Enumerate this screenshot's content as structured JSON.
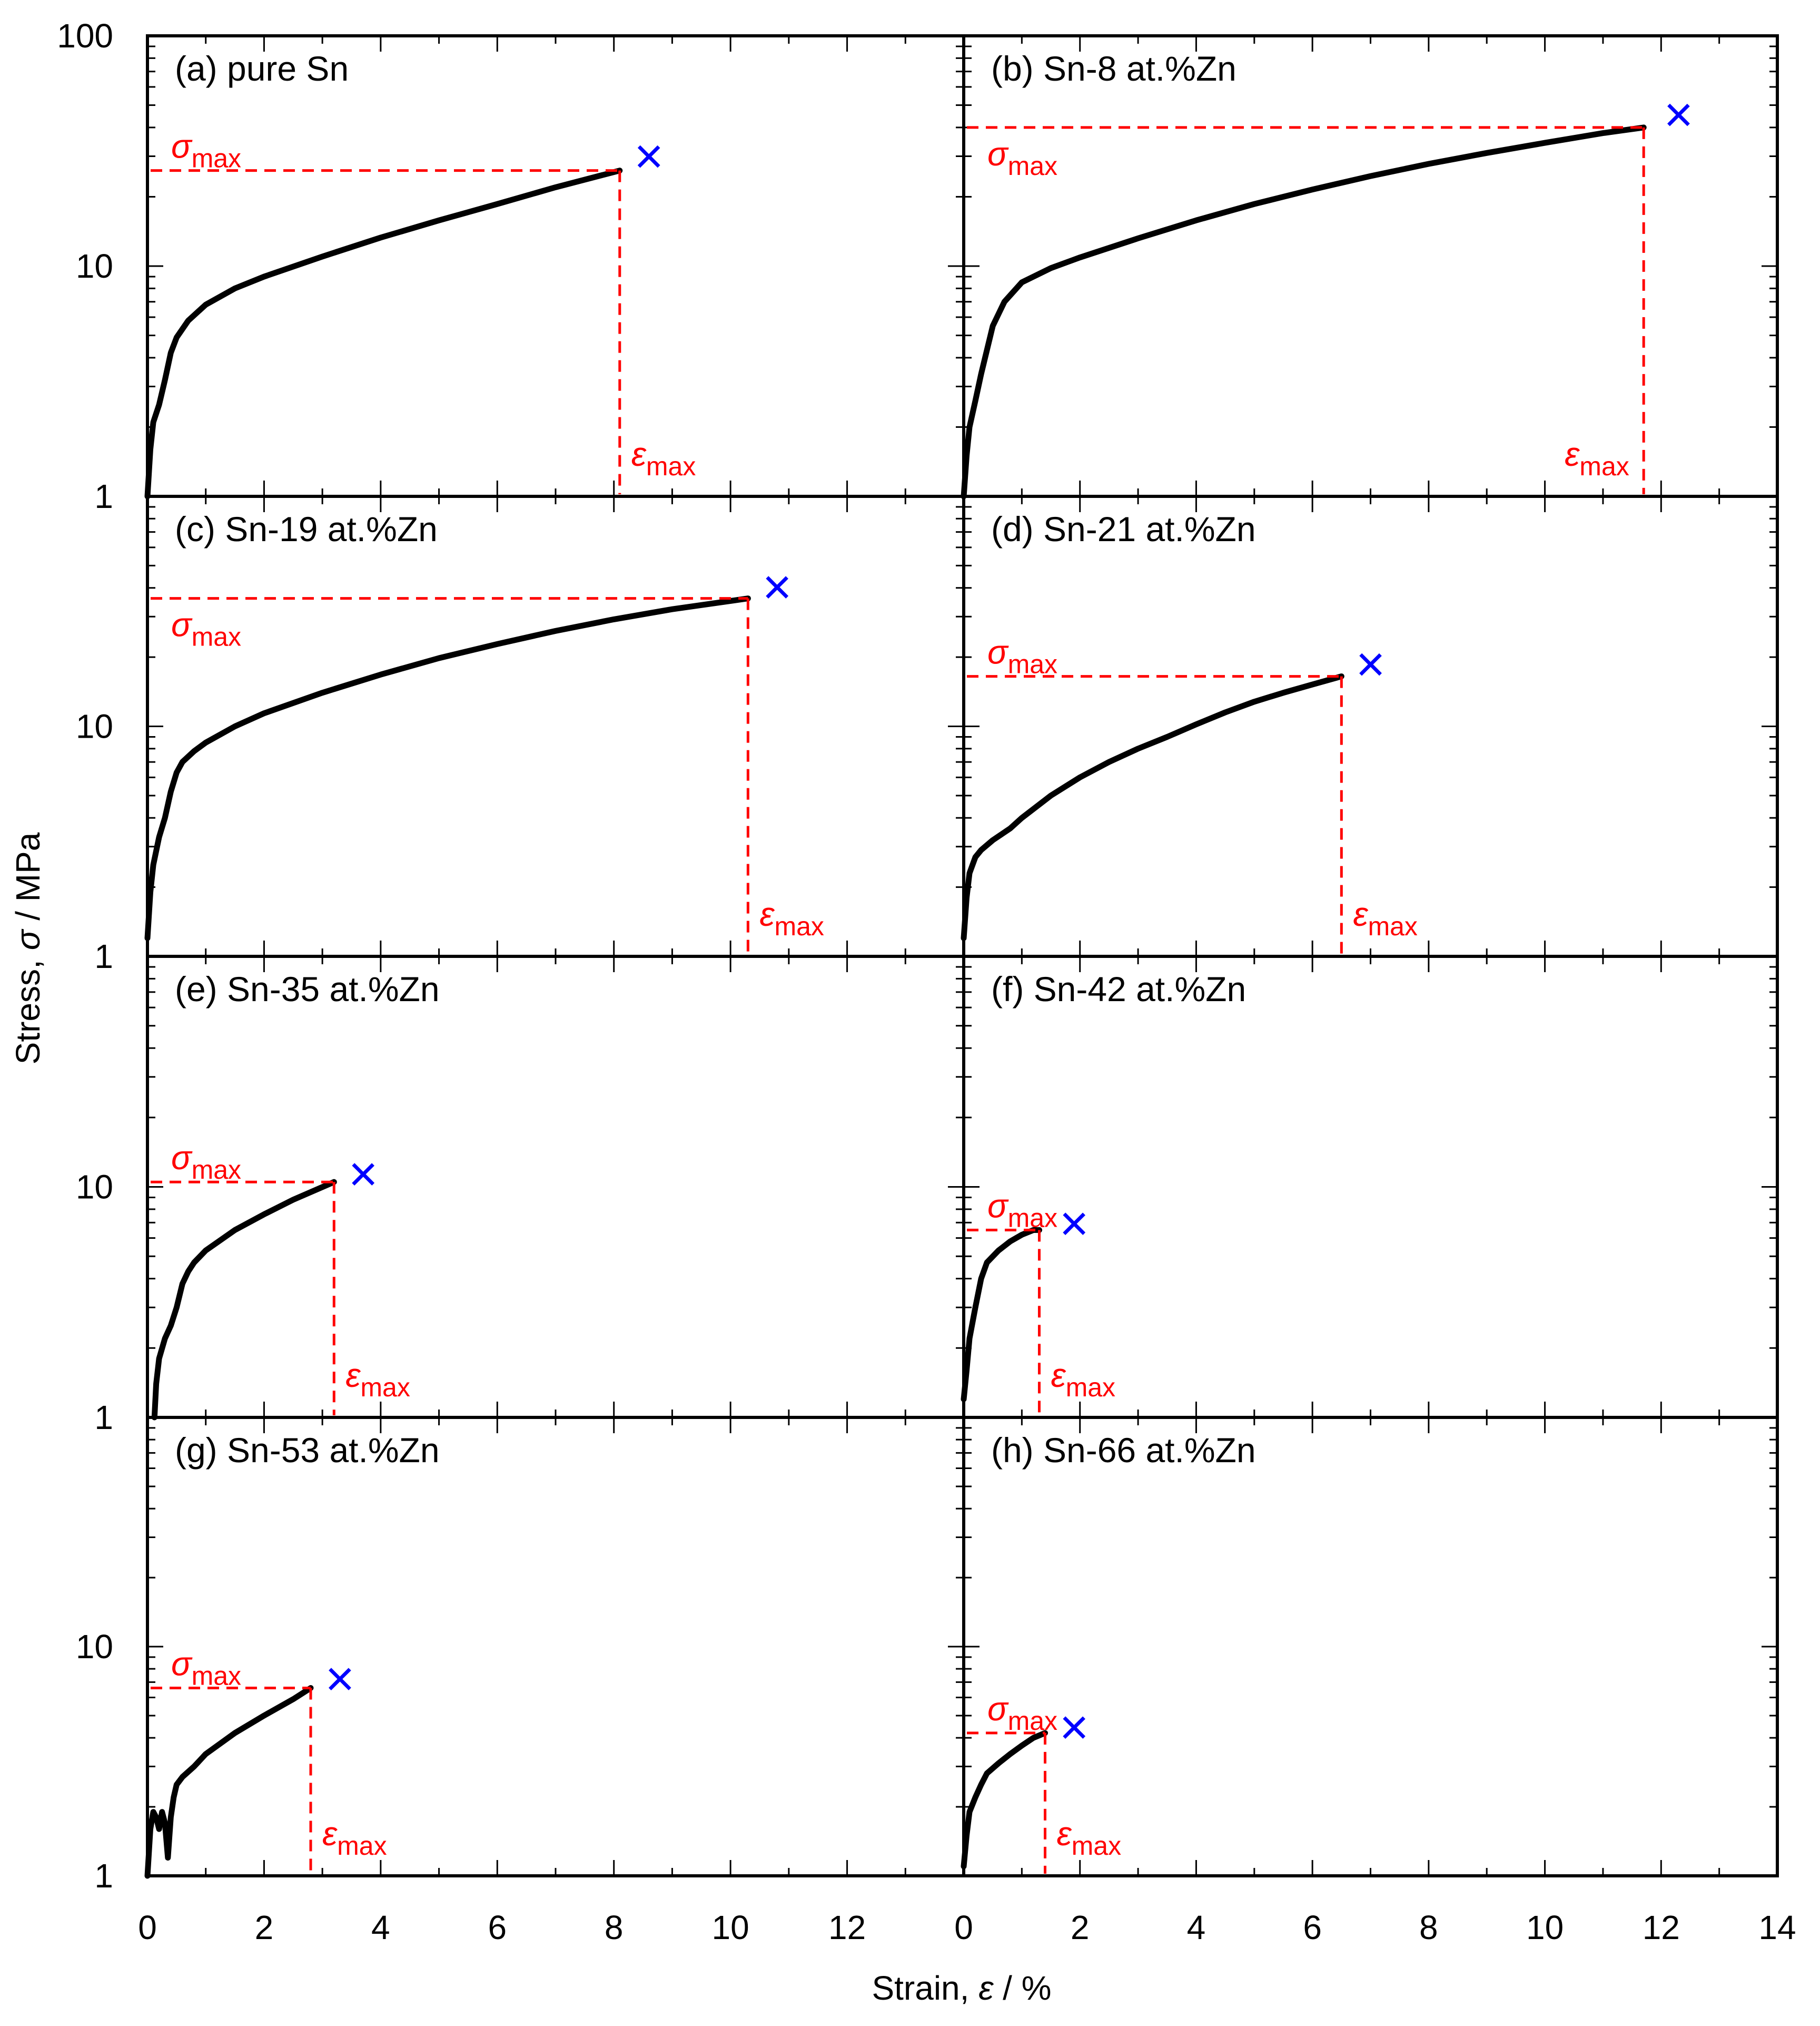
{
  "figure": {
    "ylabel_prefix": "Stress, ",
    "ylabel_symbol": "σ",
    "ylabel_suffix": " / MPa",
    "xlabel_prefix": "Strain, ",
    "xlabel_symbol": "ε",
    "xlabel_suffix": " / %",
    "sigma_symbol": "σ",
    "epsilon_symbol": "ε",
    "max_subscript": "max",
    "fracture_marker": "×"
  },
  "colors": {
    "curve": "#000000",
    "guide": "#ff0000",
    "marker": "#0000ff",
    "frame": "#000000"
  },
  "chart_data": [
    {
      "type": "line",
      "title": "(a) pure Sn",
      "xlabel": "Strain, ε / %",
      "ylabel": "Stress, σ / MPa",
      "yscale": "log",
      "xlim": [
        0,
        14
      ],
      "ylim": [
        1,
        100
      ],
      "y_tick_labels": [
        "100",
        "10",
        "1"
      ],
      "x_tick_labels": [],
      "series": [
        {
          "name": "pure Sn",
          "x": [
            0,
            0.05,
            0.1,
            0.2,
            0.3,
            0.4,
            0.5,
            0.7,
            1.0,
            1.5,
            2.0,
            3.0,
            4.0,
            5.0,
            6.0,
            7.0,
            8.1
          ],
          "y": [
            1,
            1.6,
            2.1,
            2.5,
            3.2,
            4.2,
            4.9,
            5.8,
            6.8,
            8.0,
            9.0,
            11.0,
            13.3,
            15.8,
            18.6,
            22.0,
            26
          ]
        }
      ],
      "sigma_max": 26,
      "epsilon_max": 8.1,
      "fracture_x": 8.6,
      "fracture_y": 29,
      "sigma_label_above": true
    },
    {
      "type": "line",
      "title": "(b) Sn-8 at.%Zn",
      "xlabel": "Strain, ε / %",
      "ylabel": "Stress, σ / MPa",
      "yscale": "log",
      "xlim": [
        0,
        14
      ],
      "ylim": [
        1,
        100
      ],
      "y_tick_labels": [],
      "x_tick_labels": [],
      "series": [
        {
          "name": "Sn-8 at.%Zn",
          "x": [
            0,
            0.05,
            0.1,
            0.2,
            0.3,
            0.5,
            0.7,
            1.0,
            1.5,
            2.0,
            3.0,
            4.0,
            5.0,
            6.0,
            7.0,
            8.0,
            9.0,
            10.0,
            11.0,
            11.7
          ],
          "y": [
            1,
            1.5,
            2.0,
            2.6,
            3.4,
            5.5,
            7.0,
            8.5,
            9.8,
            10.9,
            13.2,
            15.8,
            18.6,
            21.5,
            24.6,
            27.8,
            31.0,
            34.3,
            37.8,
            40
          ]
        }
      ],
      "sigma_max": 40,
      "epsilon_max": 11.7,
      "fracture_x": 12.3,
      "fracture_y": 44,
      "sigma_label_above": false
    },
    {
      "type": "line",
      "title": "(c) Sn-19 at.%Zn",
      "xlabel": "Strain, ε / %",
      "ylabel": "Stress, σ / MPa",
      "yscale": "log",
      "xlim": [
        0,
        14
      ],
      "ylim": [
        1,
        100
      ],
      "y_tick_labels": [
        "10",
        "1"
      ],
      "x_tick_labels": [],
      "series": [
        {
          "name": "Sn-19 at.%Zn",
          "x": [
            0,
            0.05,
            0.1,
            0.2,
            0.3,
            0.4,
            0.5,
            0.6,
            0.8,
            1.0,
            1.5,
            2.0,
            3.0,
            4.0,
            5.0,
            6.0,
            7.0,
            8.0,
            9.0,
            10.3
          ],
          "y": [
            1.2,
            1.9,
            2.5,
            3.3,
            4.0,
            5.2,
            6.3,
            7.0,
            7.8,
            8.5,
            10.0,
            11.4,
            14.0,
            16.8,
            19.8,
            22.8,
            26.0,
            29.2,
            32.3,
            36
          ]
        }
      ],
      "sigma_max": 36,
      "epsilon_max": 10.3,
      "fracture_x": 10.8,
      "fracture_y": 39,
      "sigma_label_above": false
    },
    {
      "type": "line",
      "title": "(d) Sn-21 at.%Zn",
      "xlabel": "Strain, ε / %",
      "ylabel": "Stress, σ / MPa",
      "yscale": "log",
      "xlim": [
        0,
        14
      ],
      "ylim": [
        1,
        100
      ],
      "y_tick_labels": [],
      "x_tick_labels": [],
      "series": [
        {
          "name": "Sn-21 at.%Zn",
          "x": [
            0,
            0.05,
            0.1,
            0.2,
            0.3,
            0.5,
            0.8,
            1.0,
            1.5,
            2.0,
            2.5,
            3.0,
            3.5,
            4.0,
            4.5,
            5.0,
            5.5,
            6.0,
            6.5
          ],
          "y": [
            1.2,
            1.8,
            2.3,
            2.7,
            2.9,
            3.2,
            3.6,
            4.0,
            5.0,
            6.0,
            7.0,
            8.0,
            9.0,
            10.2,
            11.5,
            12.8,
            14.0,
            15.2,
            16.5
          ]
        }
      ],
      "sigma_max": 16.5,
      "epsilon_max": 6.5,
      "fracture_x": 7.0,
      "fracture_y": 18,
      "sigma_label_above": true
    },
    {
      "type": "line",
      "title": "(e) Sn-35 at.%Zn",
      "xlabel": "Strain, ε / %",
      "ylabel": "Stress, σ / MPa",
      "yscale": "log",
      "xlim": [
        0,
        14
      ],
      "ylim": [
        1,
        100
      ],
      "y_tick_labels": [
        "10",
        "1"
      ],
      "x_tick_labels": [],
      "series": [
        {
          "name": "Sn-35 at.%Zn",
          "x": [
            0.12,
            0.15,
            0.2,
            0.3,
            0.4,
            0.5,
            0.6,
            0.7,
            0.8,
            1.0,
            1.5,
            2.0,
            2.5,
            3.2
          ],
          "y": [
            1,
            1.4,
            1.8,
            2.2,
            2.5,
            3.0,
            3.8,
            4.3,
            4.7,
            5.3,
            6.5,
            7.6,
            8.8,
            10.5
          ]
        }
      ],
      "sigma_max": 10.5,
      "epsilon_max": 3.2,
      "fracture_x": 3.7,
      "fracture_y": 11,
      "sigma_label_above": true
    },
    {
      "type": "line",
      "title": "(f) Sn-42 at.%Zn",
      "xlabel": "Strain, ε / %",
      "ylabel": "Stress, σ / MPa",
      "yscale": "log",
      "xlim": [
        0,
        14
      ],
      "ylim": [
        1,
        100
      ],
      "y_tick_labels": [],
      "x_tick_labels": [],
      "series": [
        {
          "name": "Sn-42 at.%Zn",
          "x": [
            0,
            0.05,
            0.1,
            0.2,
            0.3,
            0.4,
            0.6,
            0.8,
            1.0,
            1.2,
            1.3
          ],
          "y": [
            1.2,
            1.6,
            2.2,
            3.0,
            4.0,
            4.7,
            5.3,
            5.8,
            6.2,
            6.5,
            6.5
          ]
        }
      ],
      "sigma_max": 6.5,
      "epsilon_max": 1.3,
      "fracture_x": 1.9,
      "fracture_y": 6.7,
      "sigma_label_above": true
    },
    {
      "type": "line",
      "title": "(g) Sn-53 at.%Zn",
      "xlabel": "Strain, ε / %",
      "ylabel": "Stress, σ / MPa",
      "yscale": "log",
      "xlim": [
        0,
        14
      ],
      "ylim": [
        1,
        100
      ],
      "y_tick_labels": [
        "10",
        "1"
      ],
      "x_tick_labels": [
        "0",
        "2",
        "4",
        "6",
        "8",
        "10",
        "12"
      ],
      "series": [
        {
          "name": "Sn-53 at.%Zn",
          "x": [
            0,
            0.05,
            0.1,
            0.15,
            0.2,
            0.25,
            0.3,
            0.35,
            0.4,
            0.45,
            0.5,
            0.6,
            0.8,
            1.0,
            1.5,
            2.0,
            2.5,
            2.8
          ],
          "y": [
            1,
            1.6,
            1.9,
            1.8,
            1.6,
            1.9,
            1.7,
            1.2,
            1.8,
            2.2,
            2.5,
            2.7,
            3.0,
            3.4,
            4.2,
            5.0,
            5.9,
            6.6
          ]
        }
      ],
      "sigma_max": 6.6,
      "epsilon_max": 2.8,
      "fracture_x": 3.3,
      "fracture_y": 7,
      "sigma_label_above": true
    },
    {
      "type": "line",
      "title": "(h) Sn-66 at.%Zn",
      "xlabel": "Strain, ε / %",
      "ylabel": "Stress, σ / MPa",
      "yscale": "log",
      "xlim": [
        0,
        14
      ],
      "ylim": [
        1,
        100
      ],
      "y_tick_labels": [],
      "x_tick_labels": [
        "0",
        "2",
        "4",
        "6",
        "8",
        "10",
        "12",
        "14"
      ],
      "series": [
        {
          "name": "Sn-66 at.%Zn",
          "x": [
            0,
            0.05,
            0.1,
            0.2,
            0.3,
            0.4,
            0.6,
            0.8,
            1.0,
            1.2,
            1.4
          ],
          "y": [
            1.1,
            1.5,
            1.9,
            2.2,
            2.5,
            2.8,
            3.1,
            3.4,
            3.7,
            4.0,
            4.2
          ]
        }
      ],
      "sigma_max": 4.2,
      "epsilon_max": 1.4,
      "fracture_x": 1.9,
      "fracture_y": 4.3,
      "sigma_label_above": true
    }
  ]
}
